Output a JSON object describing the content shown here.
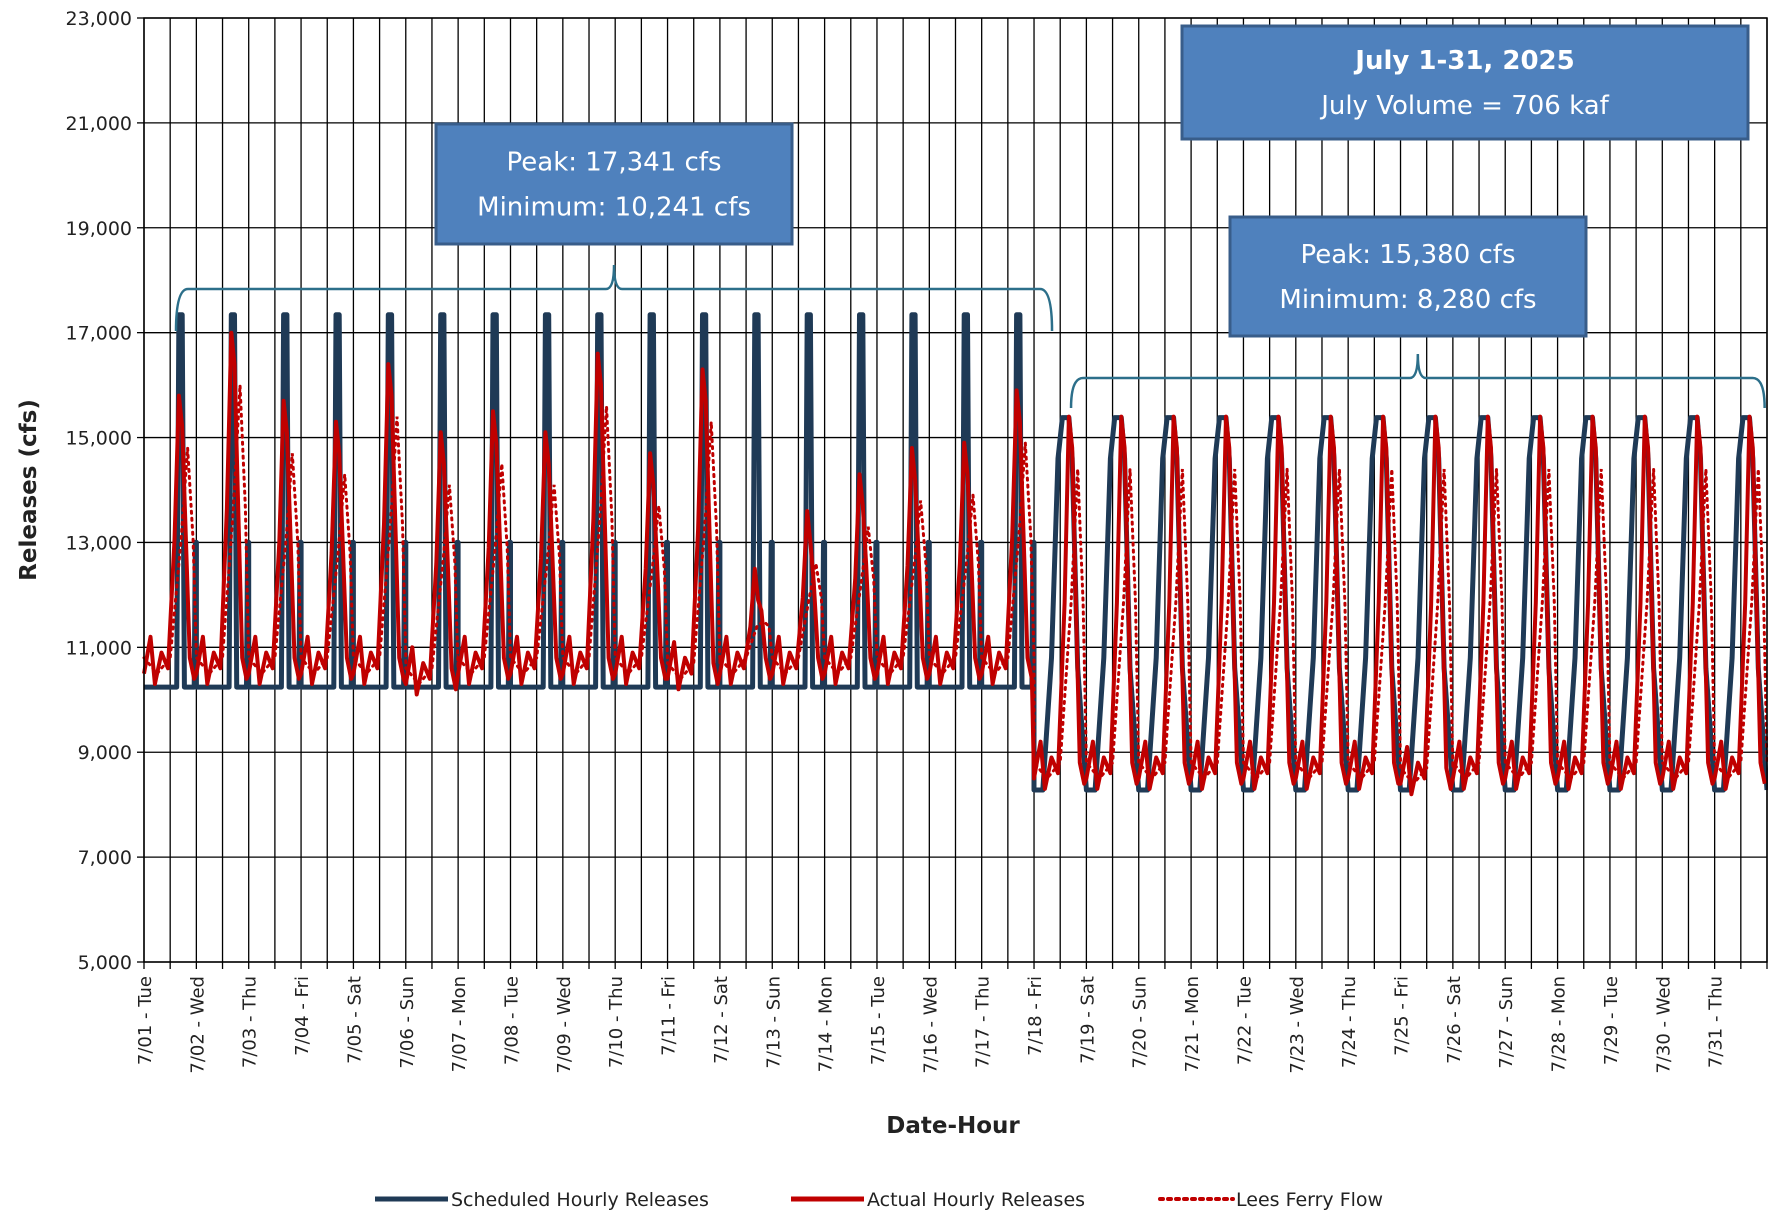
{
  "chart_data": {
    "type": "line",
    "xlabel": "Date-Hour",
    "ylabel": "Releases (cfs)",
    "ylim": [
      5000,
      23000
    ],
    "yticks": [
      "5,000",
      "7,000",
      "9,000",
      "11,000",
      "13,000",
      "15,000",
      "17,000",
      "19,000",
      "21,000",
      "23,000"
    ],
    "x_range": [
      "2025-07-01T00:00",
      "2025-08-01T00:00"
    ],
    "xticks": [
      "7/01 - Tue",
      "7/02 - Wed",
      "7/03 - Thu",
      "7/04 - Fri",
      "7/05 - Sat",
      "7/06 - Sun",
      "7/07 - Mon",
      "7/08 - Tue",
      "7/09 - Wed",
      "7/10 - Thu",
      "7/11 - Fri",
      "7/12 - Sat",
      "7/13 - Sun",
      "7/14 - Mon",
      "7/15 - Tue",
      "7/16 - Wed",
      "7/17 - Thu",
      "7/18 - Fri",
      "7/19 - Sat",
      "7/20 - Sun",
      "7/21 - Mon",
      "7/22 - Tue",
      "7/23 - Wed",
      "7/24 - Thu",
      "7/25 - Fri",
      "7/26 - Sat",
      "7/27 - Sun",
      "7/28 - Mon",
      "7/29 - Tue",
      "7/30 - Wed",
      "7/31 - Thu"
    ],
    "grid": true,
    "legend_position": "bottom",
    "series": [
      {
        "name": "Scheduled Hourly Releases",
        "color": "#1f3a56",
        "style": "solid",
        "description_pattern": "daily fluctuation",
        "periods": [
          {
            "x_start": "2025-07-01",
            "x_end": "2025-07-17",
            "peak": 17341,
            "minimum": 10241
          },
          {
            "x_start": "2025-07-18",
            "x_end": "2025-07-31",
            "peak": 15380,
            "minimum": 8280
          }
        ]
      },
      {
        "name": "Actual Hourly Releases",
        "color": "#c00000",
        "style": "solid",
        "daily_peaks": [
          15800,
          17000,
          15700,
          15300,
          16400,
          15100,
          15500,
          15100,
          16600,
          14700,
          16300,
          12500,
          13600,
          14300,
          14800,
          14900,
          15900,
          15400,
          15400,
          15400,
          15400,
          15400,
          15400,
          15400,
          15400,
          15400,
          15400,
          15400,
          15400,
          15400,
          15400
        ],
        "daily_minimums": [
          10300,
          10300,
          10300,
          10300,
          10300,
          10100,
          10300,
          10300,
          10300,
          10300,
          10200,
          10300,
          10300,
          10300,
          10300,
          10300,
          10300,
          8300,
          8300,
          8300,
          8300,
          8300,
          8300,
          8300,
          8200,
          8300,
          8300,
          8300,
          8300,
          8300,
          8300
        ]
      },
      {
        "name": "Lees Ferry Flow",
        "color": "#c00000",
        "style": "dotted"
      }
    ],
    "annotations": [
      {
        "id": "period1",
        "lines": [
          "Peak: 17,341 cfs",
          "Minimum: 10,241 cfs"
        ],
        "x_start": "2025-07-01",
        "x_end": "2025-07-18"
      },
      {
        "id": "period2",
        "lines": [
          "Peak: 15,380 cfs",
          "Minimum: 8,280 cfs"
        ],
        "x_start": "2025-07-18",
        "x_end": "2025-07-31"
      },
      {
        "id": "summary",
        "lines": [
          "July 1-31, 2025",
          "July Volume = 706 kaf"
        ]
      }
    ]
  }
}
